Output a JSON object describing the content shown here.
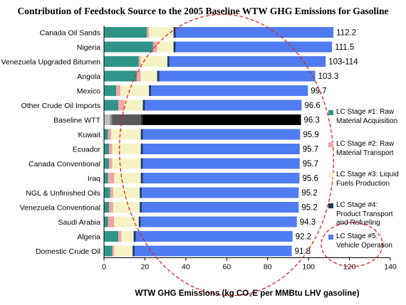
{
  "chart_data": {
    "type": "bar",
    "orientation": "horizontal",
    "stacked": true,
    "title": "Contribution of Feedstock Source to the 2005 Baseline WTW GHG Emissions for Gasoline",
    "xlabel": "WTW GHG Emissions (kg CO₂E per MMBtu LHV gasoline)",
    "xlim": [
      0,
      140
    ],
    "xticks": [
      "0",
      "20",
      "40",
      "60",
      "80",
      "100",
      "120",
      "140"
    ],
    "grid": false,
    "legend_position": "right",
    "categories": [
      "Canada Oil Sands",
      "Nigeria",
      "Venezuela Upgraded Bitumen",
      "Angola",
      "Mexico",
      "Other Crude Oil Imports",
      "Baseline WTT",
      "Kuwait",
      "Ecuador",
      "Canada Conventional",
      "Iraq",
      "NGL & Unfinished Oils",
      "Venezuela Conventional",
      "Saudi Arabia",
      "Algeria",
      "Domestic Crude Oil"
    ],
    "totals": [
      "112.2",
      "111.5",
      "103-114",
      "103.3",
      "99.7",
      "96.6",
      "96.3",
      "95.9",
      "95.7",
      "95.7",
      "95.6",
      "95.2",
      "95.2",
      "94.3",
      "92.2",
      "91.8"
    ],
    "series": [
      {
        "name": "LC Stage #1: Raw Material Acquisition",
        "color": "#2f9488",
        "values": [
          21,
          24,
          17,
          16,
          6,
          7,
          3,
          2,
          2.5,
          2.5,
          2,
          3,
          2.5,
          2,
          7,
          4
        ]
      },
      {
        "name": "LC Stage #2: Raw Material Transport",
        "color": "#f4a3a7",
        "values": [
          1,
          2,
          1,
          2,
          2,
          3,
          1,
          1.5,
          1.5,
          1.5,
          3,
          1.5,
          2,
          3,
          1.5,
          1
        ]
      },
      {
        "name": "LC Stage #3: Liquid Fuels Production",
        "color": "#f5f3c5",
        "values": [
          12,
          8,
          13,
          8,
          14,
          9,
          14,
          14.5,
          14,
          14,
          13,
          13,
          13,
          12,
          6,
          9
        ]
      },
      {
        "name": "LC Stage #4: Product Transport and Refueling",
        "color": "#1c3a66",
        "values": [
          1,
          1,
          1,
          1,
          1,
          1,
          1,
          1,
          1,
          1,
          1,
          1,
          1,
          1,
          1,
          1
        ]
      },
      {
        "name": "LC Stage #5: Vehicle Operation",
        "color": "#4f7cf0",
        "values": [
          77.2,
          76.5,
          76.4,
          76.3,
          76.7,
          76.6,
          77.3,
          76.9,
          76.7,
          76.7,
          76.6,
          76.7,
          76.7,
          76.3,
          76.7,
          76.8
        ]
      }
    ],
    "baseline_row": {
      "category": "Baseline WTT",
      "stage_colors": [
        "#bdbdbd",
        "#8a8a8a",
        "#5a5a5a",
        "#2a2a2a",
        "#000000"
      ]
    },
    "annotations": [
      "dashed-red-ellipse-around-vehicle-operation",
      "dashed-red-ellipse-around-stage5-legend"
    ]
  },
  "legend": {
    "items": [
      {
        "label": "LC Stage #1: Raw Material Acquisition",
        "color": "#2f9488"
      },
      {
        "label": "LC Stage #2: Raw Material Transport",
        "color": "#f4a3a7"
      },
      {
        "label": "LC Stage #3: Liquid Fuels Production",
        "color": "#f5f3c5"
      },
      {
        "label": "LC Stage #4: Product Transport and Refueling",
        "color": "#1c3a66"
      },
      {
        "label": "LC Stage #5: Vehicle Operation",
        "color": "#4f7cf0"
      }
    ]
  },
  "colors": {
    "annotation": "#e0201c",
    "axis": "#000000"
  }
}
